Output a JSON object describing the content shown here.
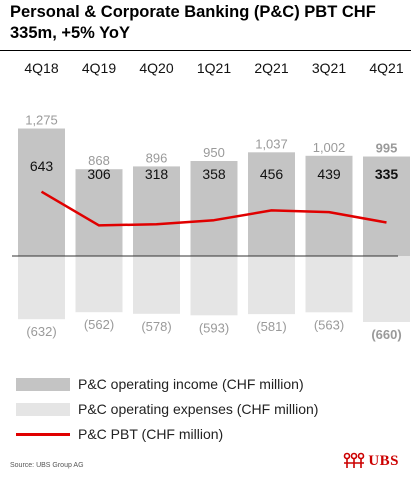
{
  "title": "Personal & Corporate Banking (P&C) PBT CHF 335m, +5% YoY",
  "source": "Source: UBS Group AG",
  "logo_text": "UBS",
  "colors": {
    "income": "#c4c4c4",
    "expenses": "#e5e5e5",
    "pbt": "#e00000",
    "label_muted": "#9a9a9a",
    "rule": "#000000"
  },
  "legend": [
    {
      "key": "income",
      "label": "P&C operating income (CHF million)"
    },
    {
      "key": "expenses",
      "label": "P&C operating expenses (CHF million)"
    },
    {
      "key": "pbt",
      "label": "P&C PBT (CHF million)"
    }
  ],
  "chart_data": {
    "type": "bar",
    "categories": [
      "4Q18",
      "4Q19",
      "4Q20",
      "1Q21",
      "2Q21",
      "3Q21",
      "4Q21"
    ],
    "series": [
      {
        "name": "P&C operating income (CHF million)",
        "type": "bar",
        "values": [
          1275,
          868,
          896,
          950,
          1037,
          1002,
          995
        ],
        "labels": [
          "1,275",
          "868",
          "896",
          "950",
          "1,037",
          "1,002",
          "995"
        ]
      },
      {
        "name": "P&C operating expenses (CHF million)",
        "type": "bar",
        "values": [
          -632,
          -562,
          -578,
          -593,
          -581,
          -563,
          -660
        ],
        "labels": [
          "(632)",
          "(562)",
          "(578)",
          "(593)",
          "(581)",
          "(563)",
          "(660)"
        ]
      },
      {
        "name": "P&C PBT (CHF million)",
        "type": "line",
        "values": [
          643,
          306,
          318,
          358,
          456,
          439,
          335
        ],
        "labels": [
          "643",
          "306",
          "318",
          "358",
          "456",
          "439",
          "335"
        ]
      }
    ],
    "highlight_index": 6,
    "ylim": [
      -700,
      1300
    ],
    "grid": false,
    "legend_position": "bottom"
  }
}
